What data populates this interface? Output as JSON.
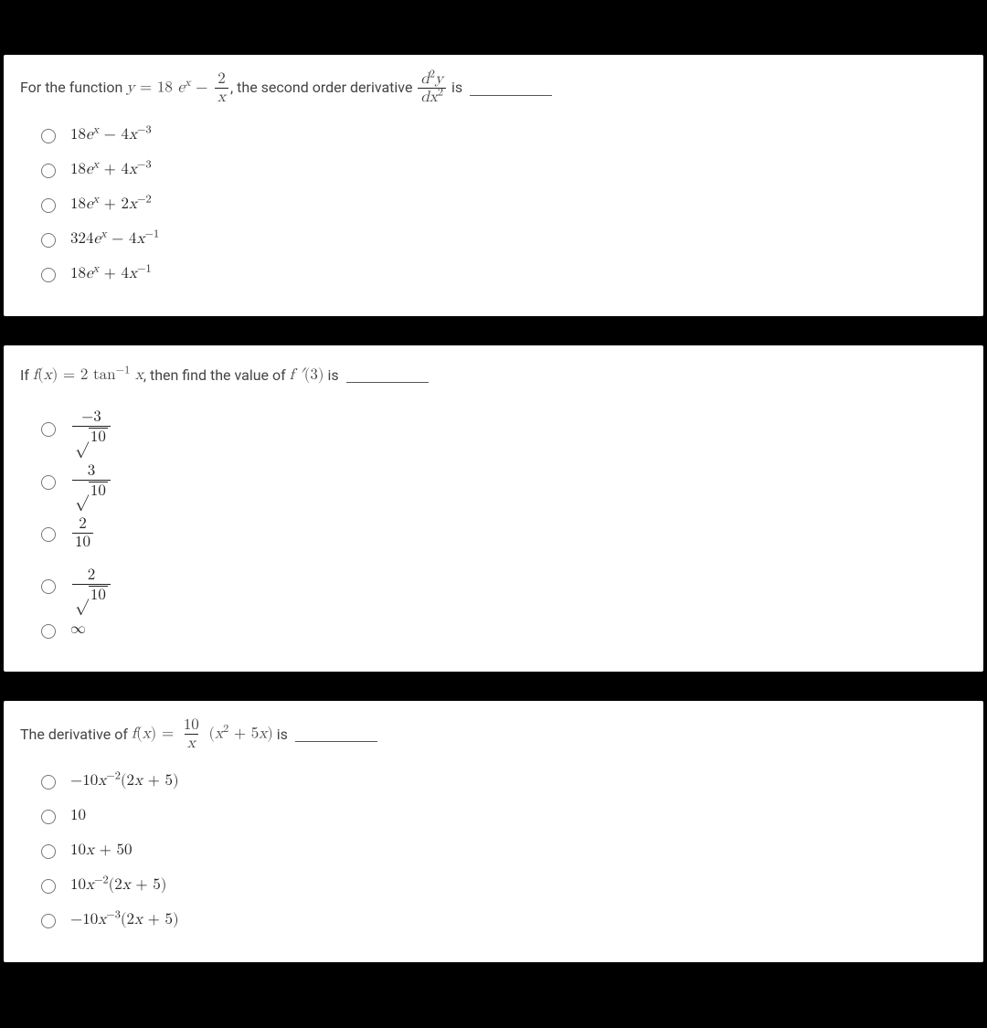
{
  "page": {
    "background_color": "#000000",
    "card_background": "#ffffff",
    "text_color": "#444444",
    "math_color": "#222222"
  },
  "q1": {
    "prompt_pre": "For the function ",
    "func_lhs_y": "y",
    "func_eq": " = 18 ",
    "e": "e",
    "exp_x": "x",
    "minus": " − ",
    "frac_num": "2",
    "frac_den_x": "x",
    "prompt_mid": ", the second order derivative ",
    "d2y_num_d": "d",
    "d2y_num_exp": "2",
    "d2y_num_y": "y",
    "d2y_den_d": "d",
    "d2y_den_x": "x",
    "d2y_den_exp": "2",
    "prompt_post": " is ",
    "options": {
      "a": {
        "coef1": "18",
        "e": "e",
        "ex": "x",
        "op": " − ",
        "coef2": "4",
        "x": "x",
        "pow": "−3"
      },
      "b": {
        "coef1": "18",
        "e": "e",
        "ex": "x",
        "op": " + ",
        "coef2": "4",
        "x": "x",
        "pow": "−3"
      },
      "c": {
        "coef1": "18",
        "e": "e",
        "ex": "x",
        "op": " + ",
        "coef2": "2",
        "x": "x",
        "pow": "−2"
      },
      "d": {
        "coef1": "324",
        "e": "e",
        "ex": "x",
        "op": " − ",
        "coef2": "4",
        "x": "x",
        "pow": "−1"
      },
      "e": {
        "coef1": "18",
        "e": "e",
        "ex": "x",
        "op": " + ",
        "coef2": "4",
        "x": "x",
        "pow": "−1"
      }
    }
  },
  "q2": {
    "prompt_pre": "If ",
    "f": "f",
    "paren_open": "(",
    "xvar": "x",
    "paren_close": ")",
    "eq": " = 2 tan",
    "inv_exp": "−1",
    "x2": "x",
    "prompt_mid": ", then find the value of ",
    "fprime": "f ′",
    "arg3_open": "(",
    "arg3": "3",
    "arg3_close": ")",
    "prompt_post": " is ",
    "options": {
      "a": {
        "num": "−3",
        "den_rad": "10"
      },
      "b": {
        "num": "3",
        "den_rad": "10"
      },
      "c": {
        "num": "2",
        "den_plain": "10"
      },
      "d": {
        "num": "2",
        "den_rad": "10"
      },
      "e": {
        "sym": "∞"
      }
    }
  },
  "q3": {
    "prompt_pre": "The derivative of ",
    "f": "f",
    "paren_open": "(",
    "xvar": "x",
    "paren_close": ")",
    "eq": " = ",
    "frac_num": "10",
    "frac_den_x": "x",
    "group_open": " (",
    "x2": "x",
    "x2_pow": "2",
    "plus5x": " + 5",
    "x3": "x",
    "group_close": ")",
    "prompt_post": " is ",
    "options": {
      "a": {
        "sign": "−",
        "coef": "10",
        "x": "x",
        "pow": "−2",
        "open": "(2",
        "xv": "x",
        "mid": " + 5)",
        "close": ""
      },
      "b": {
        "plain": "10"
      },
      "c": {
        "coef": "10",
        "x": "x",
        "mid": " + 50"
      },
      "d": {
        "coef": "10",
        "x": "x",
        "pow": "−2",
        "open": "(2",
        "xv": "x",
        "mid": " + 5)"
      },
      "e": {
        "sign": "−",
        "coef": "10",
        "x": "x",
        "pow": "−3",
        "open": "(2",
        "xv": "x",
        "mid": " + 5)"
      }
    }
  }
}
